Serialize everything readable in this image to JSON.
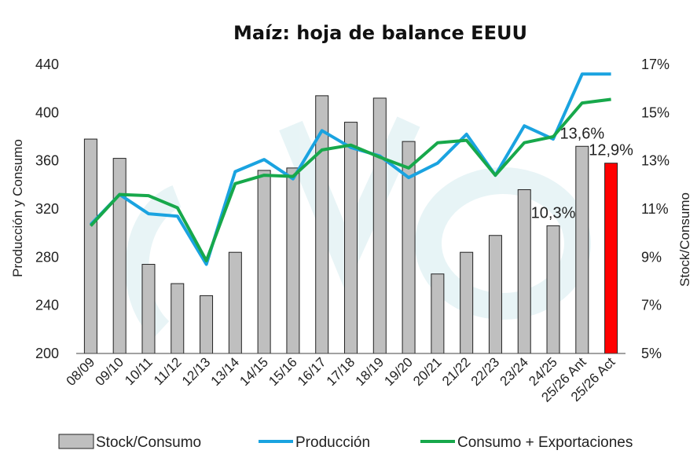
{
  "chart_data": {
    "type": "bar",
    "title": "Maíz:  hoja de balance EEUU",
    "ylabel_left": "Producción y Consumo",
    "ylabel_right": "Stock/Consumo",
    "ylim_left": [
      200,
      440
    ],
    "yticks_left": [
      "440",
      "400",
      "360",
      "320",
      "280",
      "240",
      "200"
    ],
    "ylim_right": [
      5,
      17
    ],
    "yticks_right": [
      "17%",
      "15%",
      "13%",
      "11%",
      "9%",
      "7%",
      "5%"
    ],
    "categories": [
      "08/09",
      "09/10",
      "10/11",
      "11/12",
      "12/13",
      "13/14",
      "14/15",
      "15/16",
      "16/17",
      "17/18",
      "18/19",
      "19/20",
      "20/21",
      "21/22",
      "22/23",
      "23/24",
      "24/25",
      "25/26 Ant",
      "25/26 Act"
    ],
    "series": [
      {
        "name": "Stock/Consumo",
        "kind": "bar",
        "axis": "right",
        "color": "#bfbfbf",
        "highlight_color": "#ff0000",
        "highlight_index": 18,
        "values": [
          13.9,
          13.1,
          8.7,
          7.9,
          7.4,
          9.2,
          12.6,
          12.7,
          15.7,
          14.6,
          15.6,
          13.8,
          8.3,
          9.2,
          9.9,
          11.8,
          10.3,
          13.6,
          12.9
        ]
      },
      {
        "name": "Producción",
        "kind": "line",
        "axis": "left",
        "color": "#1aa3e0",
        "values": [
          307,
          332,
          316,
          314,
          274,
          351,
          361,
          345,
          385,
          371,
          364,
          346,
          358,
          382,
          348,
          389,
          378,
          432,
          432
        ]
      },
      {
        "name": "Consumo + Exportaciones",
        "kind": "line",
        "axis": "left",
        "color": "#17a84b",
        "values": [
          306,
          332,
          331,
          321,
          277,
          341,
          348,
          347,
          369,
          373,
          363,
          354,
          375,
          377,
          348,
          375,
          380,
          408,
          411
        ]
      }
    ],
    "data_labels": [
      {
        "index": 16,
        "text": "10,3%"
      },
      {
        "index": 17,
        "text": "13,6%"
      },
      {
        "index": 18,
        "text": "12,9%"
      }
    ],
    "legend_position": "bottom",
    "grid": false
  }
}
